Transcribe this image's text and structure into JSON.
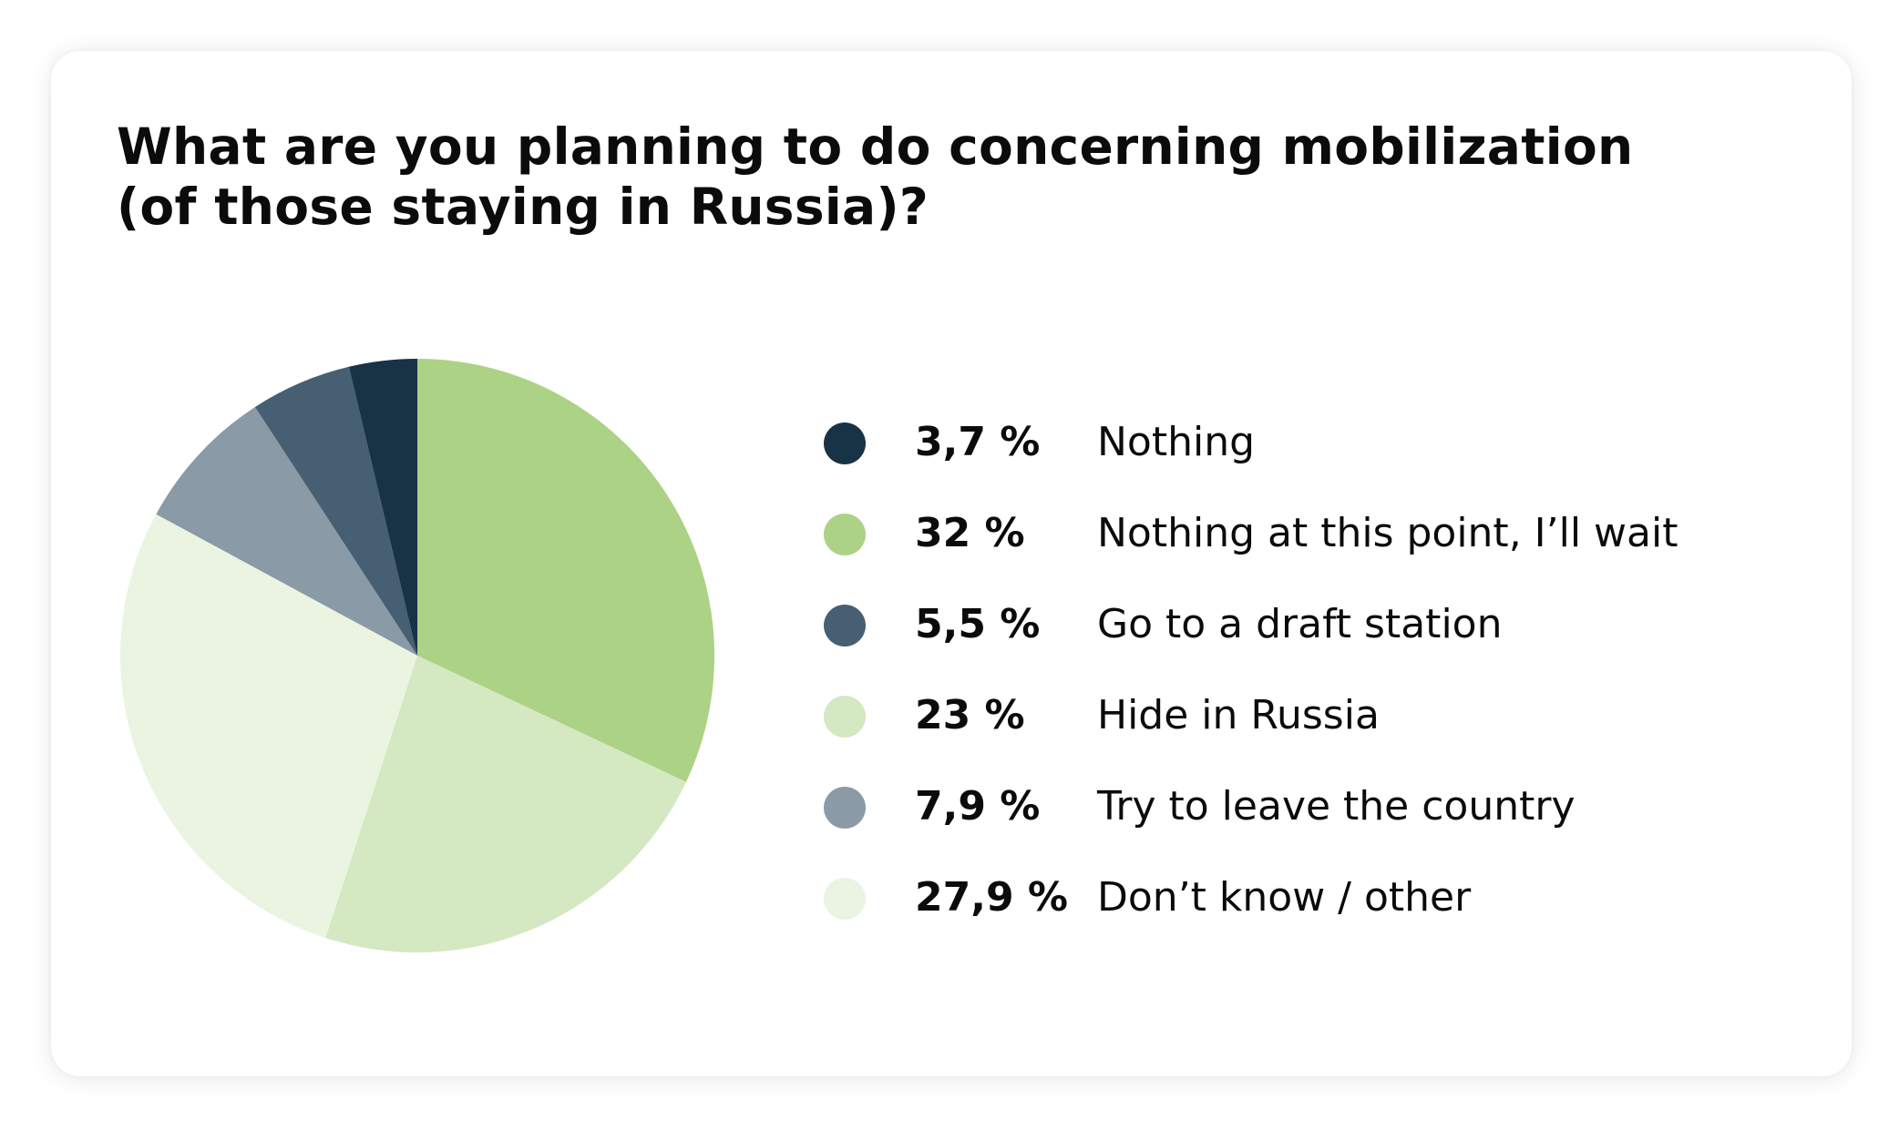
{
  "title": {
    "line1": "What are you planning to do concerning mobilization",
    "line2": "(of those staying in Russia)?"
  },
  "chart_data": {
    "type": "pie",
    "title": "What are you planning to do concerning mobilization (of those staying in Russia)?",
    "legend_placement": "right",
    "slices": [
      {
        "label": "Nothing",
        "value": 3.7,
        "display": "3,7 %",
        "color": "#183246"
      },
      {
        "label": "Nothing at this point, I’ll wait",
        "value": 32,
        "display": "32 %",
        "color": "#acd285"
      },
      {
        "label": "Go to a draft station",
        "value": 5.5,
        "display": "5,5 %",
        "color": "#465f72"
      },
      {
        "label": "Hide in Russia",
        "value": 23,
        "display": "23 %",
        "color": "#d4e8c1"
      },
      {
        "label": "Try to leave the country",
        "value": 7.9,
        "display": "7,9 %",
        "color": "#8a9aa6"
      },
      {
        "label": "Don’t know / other",
        "value": 27.9,
        "display": "27,9 %",
        "color": "#ebf4e1"
      }
    ],
    "pie_order": [
      1,
      3,
      5,
      4,
      2,
      0
    ]
  }
}
